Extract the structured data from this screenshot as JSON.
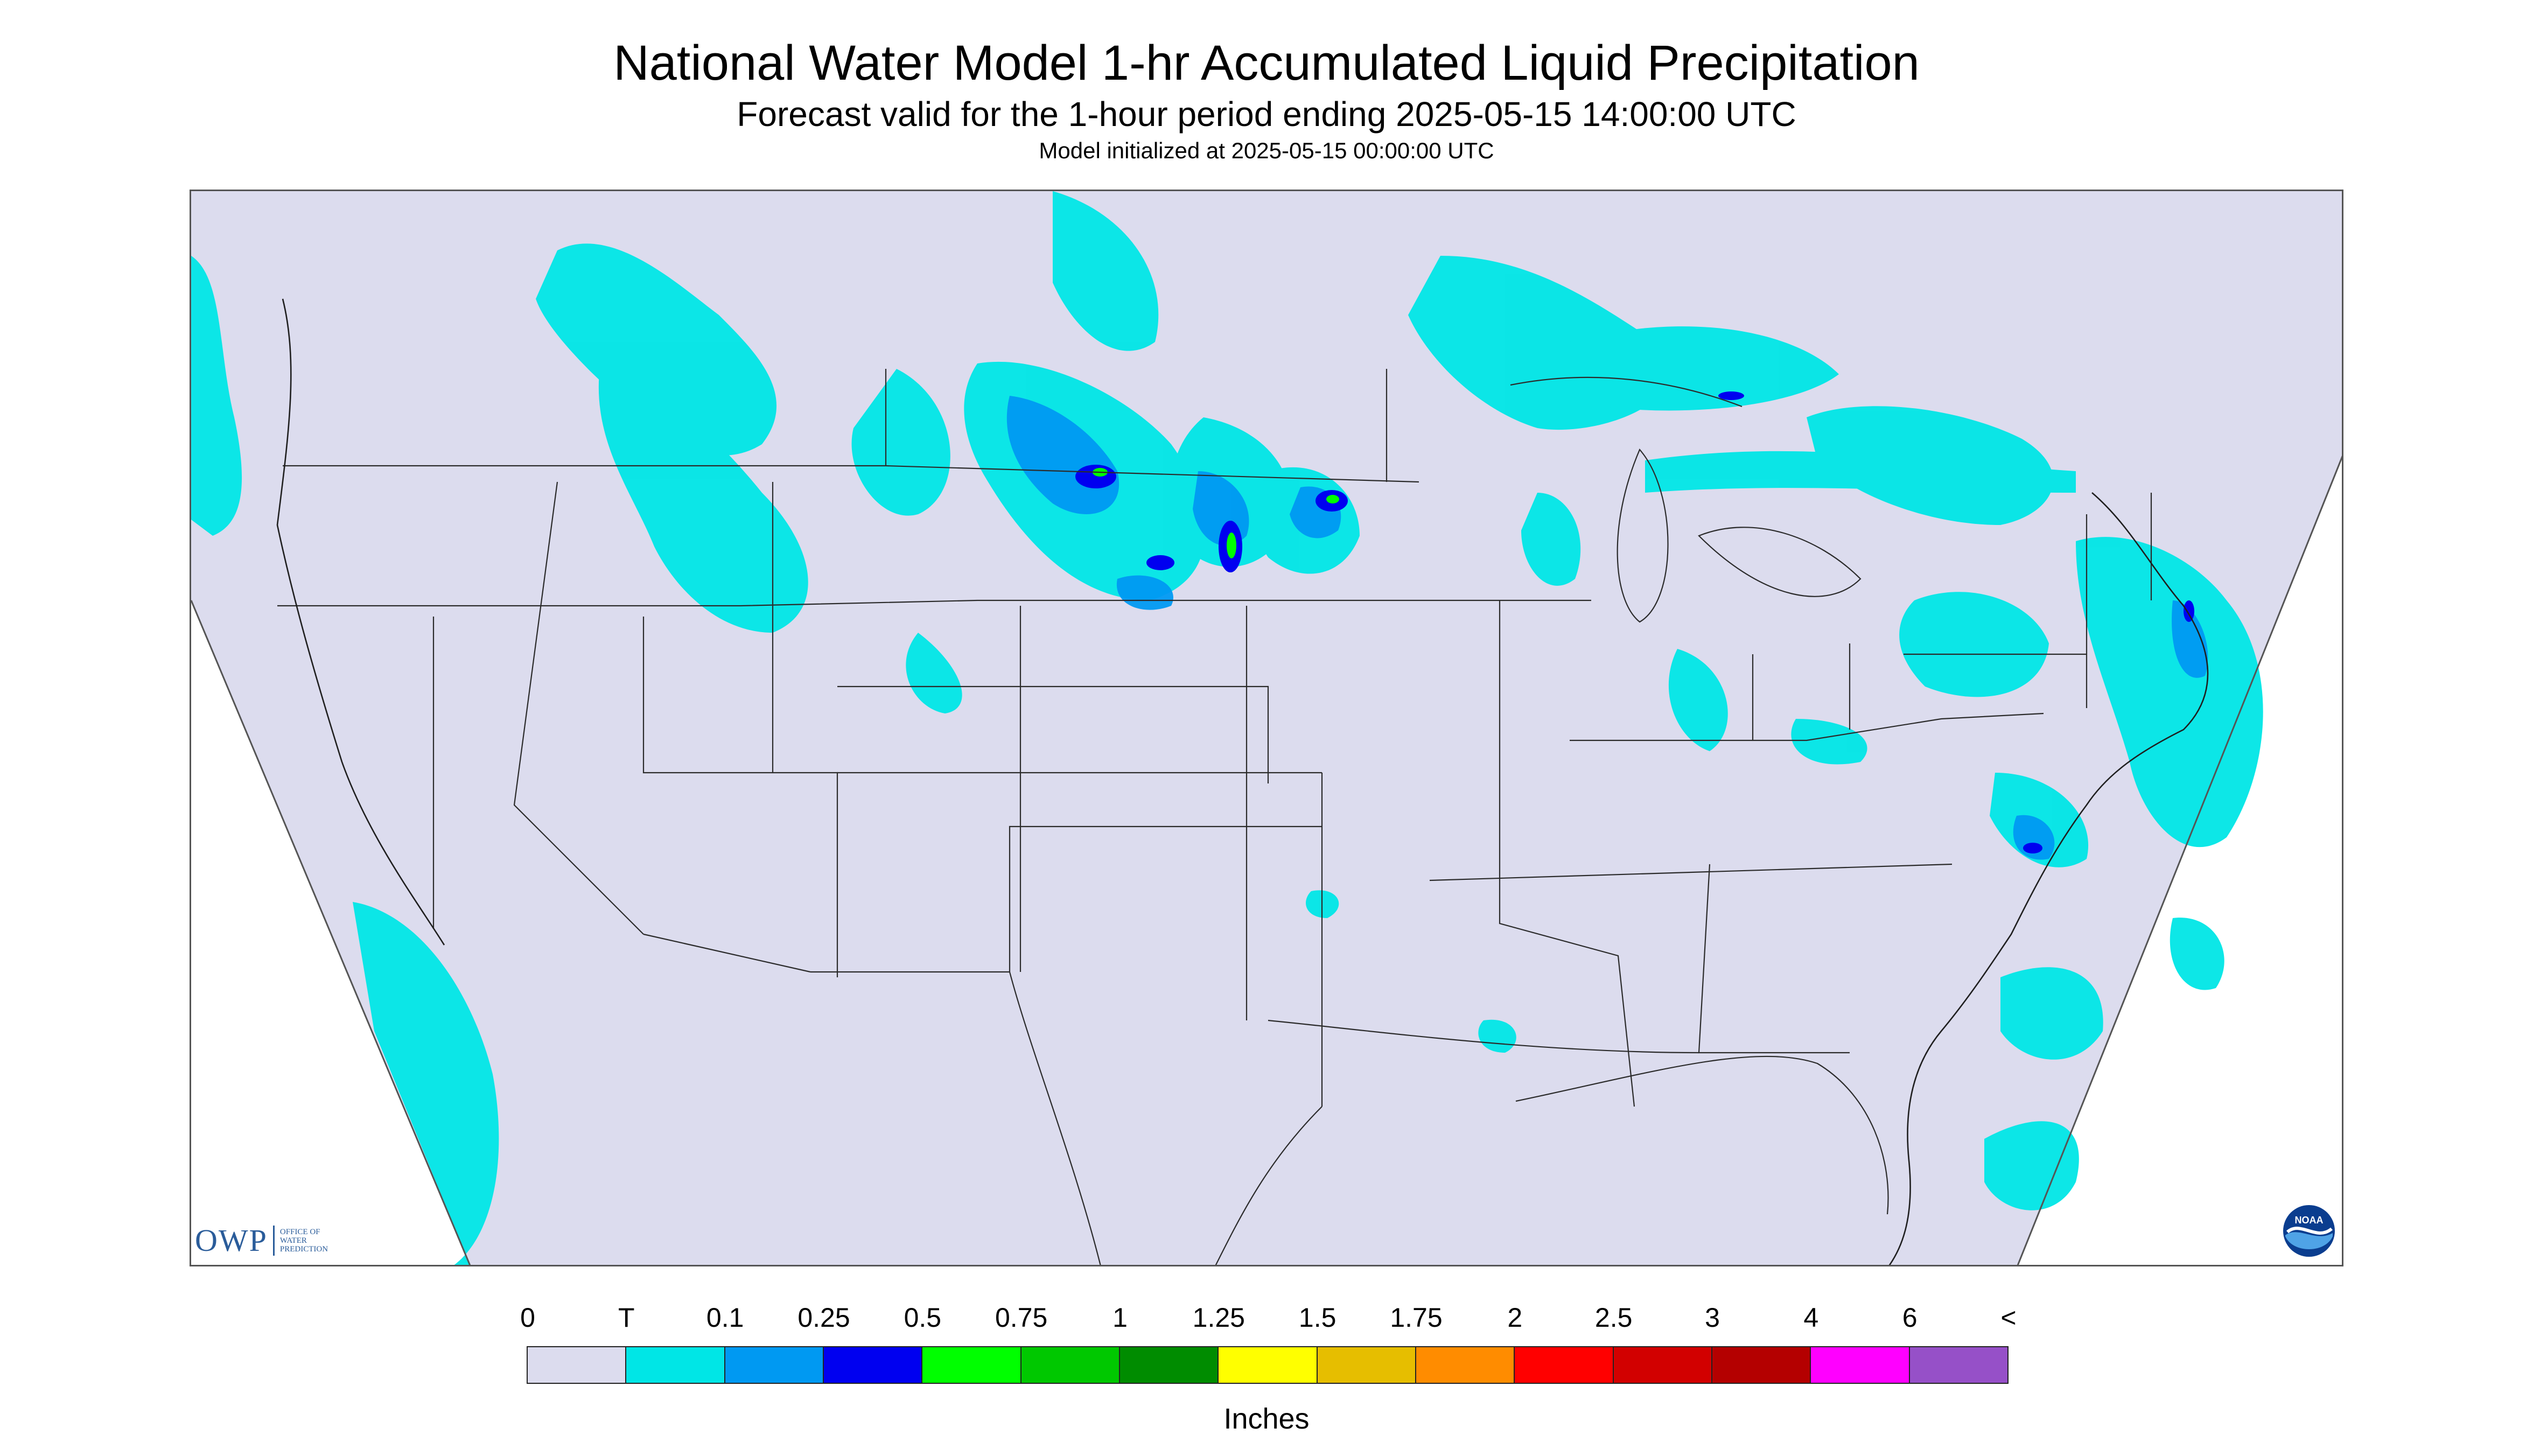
{
  "title": "National Water Model 1-hr Accumulated Liquid Precipitation",
  "subtitle": "Forecast valid for the 1-hour period ending 2025-05-15 14:00:00 UTC",
  "init_line": "Model initialized at 2025-05-15 00:00:00 UTC",
  "map": {
    "region": "Contiguous United States",
    "background_color": "#dcdcee",
    "outside_domain_color": "#ffffff",
    "boundary_color": "#2b2b2b"
  },
  "logos": {
    "owp": {
      "text": "OWP",
      "sub": [
        "Office of",
        "Water",
        "Prediction"
      ]
    },
    "noaa": {
      "text": "NOAA"
    }
  },
  "legend": {
    "units": "Inches",
    "labels": [
      "0",
      "T",
      "0.1",
      "0.25",
      "0.5",
      "0.75",
      "1",
      "1.25",
      "1.5",
      "1.75",
      "2",
      "2.5",
      "3",
      "4",
      "6",
      "<"
    ],
    "colors": [
      "#dcdcee",
      "#00e6e6",
      "#0099f2",
      "#0000f0",
      "#00ff00",
      "#00c800",
      "#008c00",
      "#ffff00",
      "#e6be00",
      "#ff8c00",
      "#ff0000",
      "#d20000",
      "#b40000",
      "#ff00ff",
      "#9650c8"
    ]
  }
}
